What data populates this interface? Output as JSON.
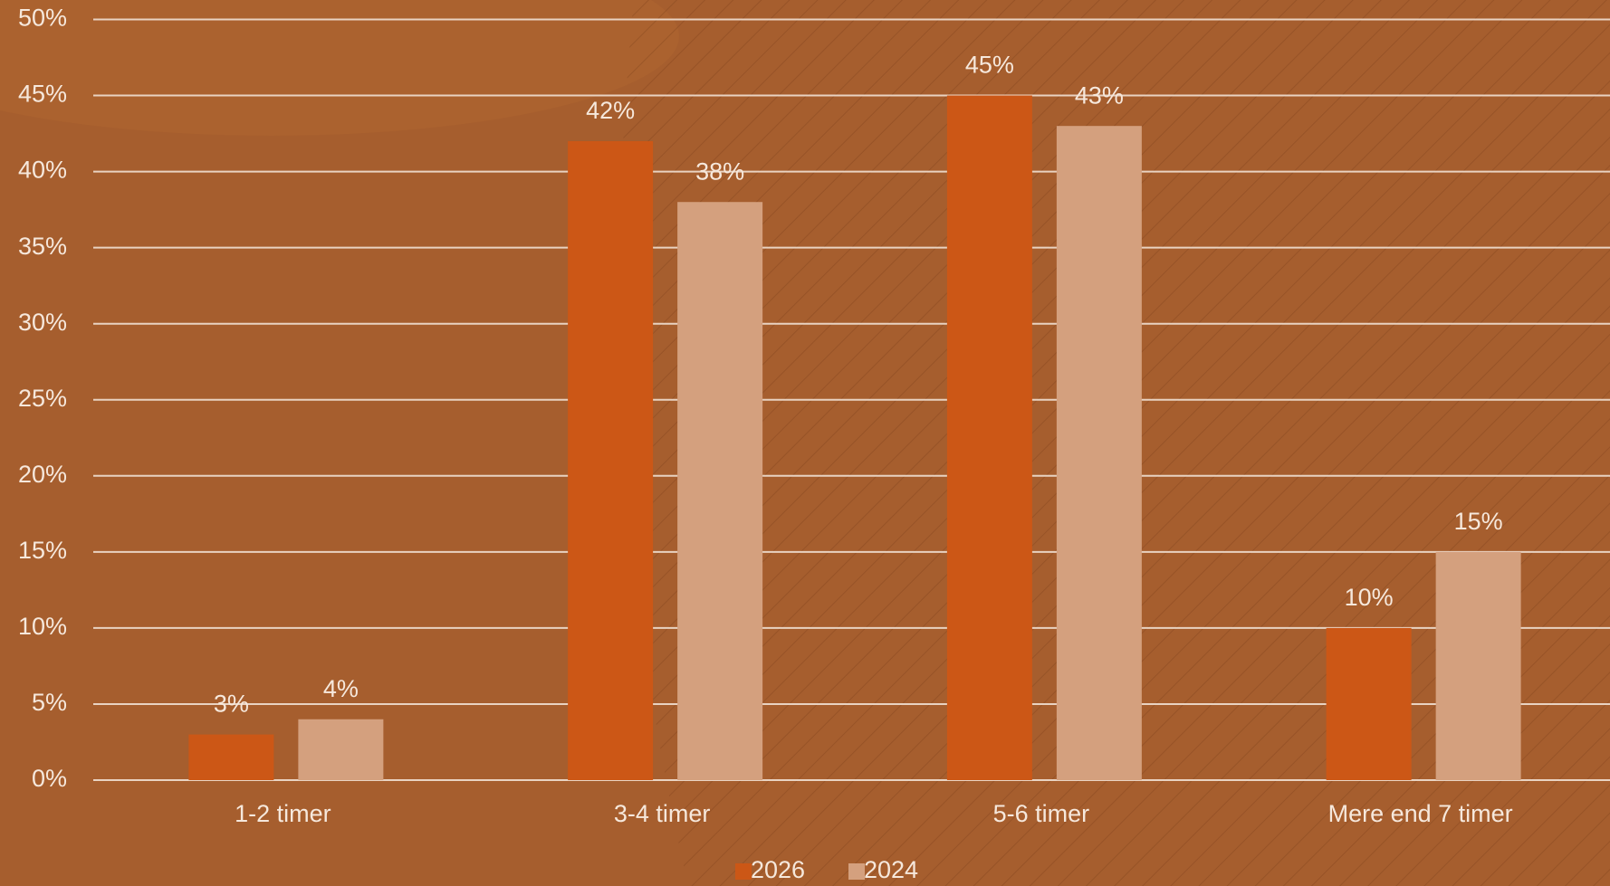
{
  "chart_data": {
    "type": "bar",
    "categories": [
      "1-2 timer",
      "3-4 timer",
      "5-6 timer",
      "Mere end 7 timer"
    ],
    "series": [
      {
        "name": "2026",
        "color": "#cc5716",
        "values": [
          3,
          42,
          45,
          10
        ],
        "value_labels": [
          "3%",
          "42%",
          "45%",
          "10%"
        ]
      },
      {
        "name": "2024",
        "color": "#d4a07e",
        "values": [
          4,
          38,
          43,
          15
        ],
        "value_labels": [
          "4%",
          "38%",
          "43%",
          "15%"
        ]
      }
    ],
    "ylim": [
      0,
      50
    ],
    "yticks": [
      {
        "value": 0,
        "label": "0%"
      },
      {
        "value": 5,
        "label": "5%"
      },
      {
        "value": 10,
        "label": "10%"
      },
      {
        "value": 15,
        "label": "15%"
      },
      {
        "value": 20,
        "label": "20%"
      },
      {
        "value": 25,
        "label": "25%"
      },
      {
        "value": 30,
        "label": "30%"
      },
      {
        "value": 35,
        "label": "35%"
      },
      {
        "value": 40,
        "label": "40%"
      },
      {
        "value": 45,
        "label": "45%"
      },
      {
        "value": 50,
        "label": "50%"
      }
    ],
    "grid": true,
    "legend": "bottom"
  }
}
